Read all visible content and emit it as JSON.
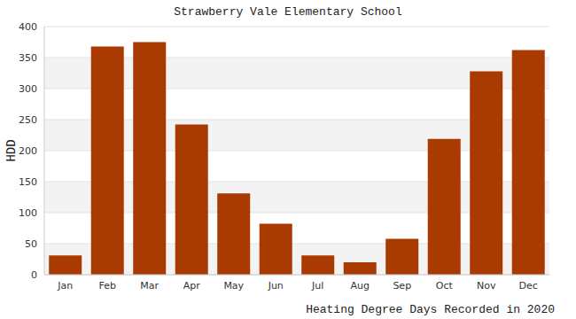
{
  "chart_data": {
    "type": "bar",
    "title": "Strawberry Vale Elementary School",
    "x_label": "Heating Degree Days Recorded in 2020",
    "y_label": "HDD",
    "categories": [
      "Jan",
      "Feb",
      "Mar",
      "Apr",
      "May",
      "Jun",
      "Jul",
      "Aug",
      "Sep",
      "Oct",
      "Nov",
      "Dec"
    ],
    "values": [
      31,
      368,
      375,
      242,
      131,
      82,
      31,
      20,
      58,
      219,
      328,
      362
    ],
    "color": "#a83a02",
    "ylim": [
      0,
      400
    ],
    "yticks": [
      0,
      50,
      100,
      150,
      200,
      250,
      300,
      350,
      400
    ],
    "grid": true
  }
}
